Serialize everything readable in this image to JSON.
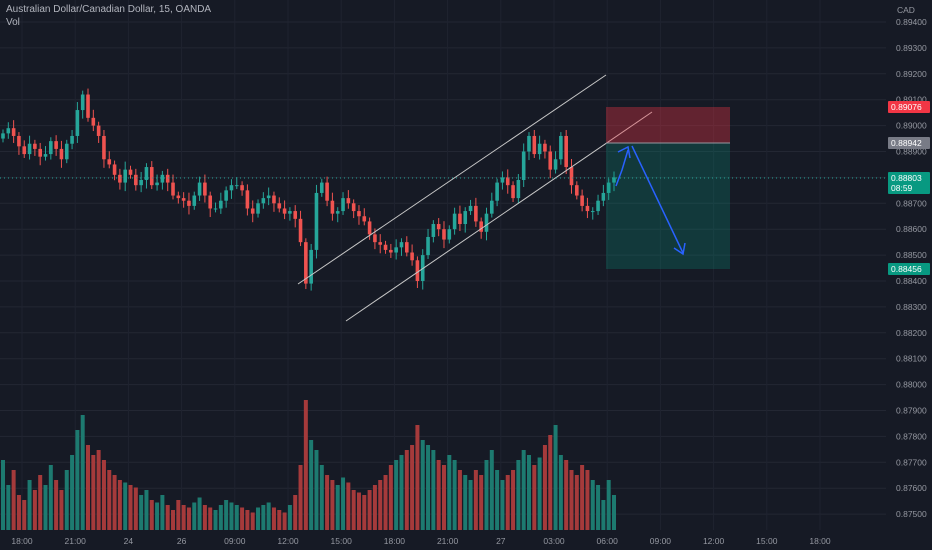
{
  "header": {
    "title": "Australian Dollar/Canadian Dollar, 15, OANDA",
    "volume_label": "Vol",
    "currency": "CAD"
  },
  "colors": {
    "background": "#161a25",
    "bull": "#26a69a",
    "bear": "#ef5350",
    "bull_volume": "#1d7a70",
    "bear_volume": "#a53a3b",
    "channel_line": "#c8c8c8",
    "arrow": "#2962ff",
    "stop_zone": "#f2364580",
    "target_zone": "#08998150",
    "current_price_line": "#26a69a"
  },
  "price_axis": {
    "ticks": [
      "0.89400",
      "0.89300",
      "0.89200",
      "0.89100",
      "0.89000",
      "0.88900",
      "0.88800",
      "0.88700",
      "0.88600",
      "0.88500",
      "0.88400",
      "0.88300",
      "0.88200",
      "0.88100",
      "0.88000",
      "0.87900",
      "0.87800",
      "0.87700",
      "0.87600",
      "0.87500"
    ],
    "tags": [
      {
        "label": "0.89076",
        "color": "#f23645"
      },
      {
        "label": "0.88942",
        "color": "#787b86"
      },
      {
        "label": "0.88803",
        "sub": "08:59",
        "color": "#089981"
      },
      {
        "label": "0.88456",
        "color": "#089981"
      }
    ]
  },
  "time_axis": {
    "ticks": [
      "18:00",
      "21:00",
      "24",
      "26",
      "09:00",
      "12:00",
      "15:00",
      "18:00",
      "21:00",
      "27",
      "03:00",
      "06:00",
      "09:00",
      "12:00",
      "15:00",
      "18:00"
    ]
  },
  "chart_data": {
    "type": "candlestick",
    "symbol": "AUDCAD",
    "interval": "15",
    "close": [
      0.8897,
      0.8899,
      0.8896,
      0.8892,
      0.8889,
      0.8893,
      0.8891,
      0.8888,
      0.8889,
      0.8894,
      0.8891,
      0.8887,
      0.8893,
      0.8896,
      0.8906,
      0.8912,
      0.8903,
      0.89,
      0.8896,
      0.8887,
      0.8885,
      0.8881,
      0.8878,
      0.8883,
      0.8881,
      0.8877,
      0.8879,
      0.8884,
      0.8877,
      0.8878,
      0.8881,
      0.8878,
      0.8873,
      0.8872,
      0.8871,
      0.8869,
      0.8873,
      0.8878,
      0.8873,
      0.8868,
      0.8868,
      0.8871,
      0.8875,
      0.8877,
      0.8877,
      0.8875,
      0.8868,
      0.8866,
      0.887,
      0.8872,
      0.8873,
      0.887,
      0.8868,
      0.8866,
      0.8867,
      0.8864,
      0.8855,
      0.8839,
      0.8852,
      0.8874,
      0.8878,
      0.8871,
      0.8866,
      0.8867,
      0.8872,
      0.887,
      0.8867,
      0.8865,
      0.8863,
      0.8858,
      0.8855,
      0.8854,
      0.8852,
      0.8851,
      0.8853,
      0.8855,
      0.8851,
      0.8848,
      0.884,
      0.885,
      0.8857,
      0.8862,
      0.886,
      0.8856,
      0.886,
      0.8866,
      0.8862,
      0.8867,
      0.8869,
      0.8863,
      0.8859,
      0.8866,
      0.8871,
      0.8878,
      0.888,
      0.8877,
      0.8872,
      0.8879,
      0.889,
      0.8896,
      0.8889,
      0.8893,
      0.889,
      0.8883,
      0.8887,
      0.8896,
      0.8884,
      0.8877,
      0.8873,
      0.8869,
      0.8867,
      0.8867,
      0.8871,
      0.8874,
      0.8878,
      0.888
    ],
    "volume": [
      140,
      90,
      120,
      70,
      60,
      100,
      80,
      110,
      90,
      130,
      100,
      80,
      120,
      150,
      200,
      230,
      170,
      150,
      160,
      140,
      120,
      110,
      100,
      95,
      90,
      85,
      70,
      80,
      60,
      55,
      70,
      50,
      40,
      60,
      50,
      45,
      55,
      65,
      50,
      45,
      40,
      50,
      60,
      55,
      50,
      45,
      40,
      35,
      45,
      50,
      55,
      45,
      40,
      35,
      50,
      70,
      130,
      260,
      180,
      160,
      130,
      110,
      100,
      90,
      105,
      95,
      80,
      75,
      70,
      80,
      90,
      100,
      110,
      130,
      140,
      150,
      160,
      170,
      210,
      180,
      170,
      160,
      140,
      130,
      150,
      140,
      120,
      110,
      100,
      120,
      110,
      140,
      160,
      120,
      100,
      110,
      120,
      140,
      160,
      150,
      130,
      145,
      170,
      190,
      210,
      150,
      140,
      120,
      110,
      130,
      120,
      100,
      90,
      60,
      100,
      70
    ],
    "ylim": [
      0.8745,
      0.894
    ]
  }
}
